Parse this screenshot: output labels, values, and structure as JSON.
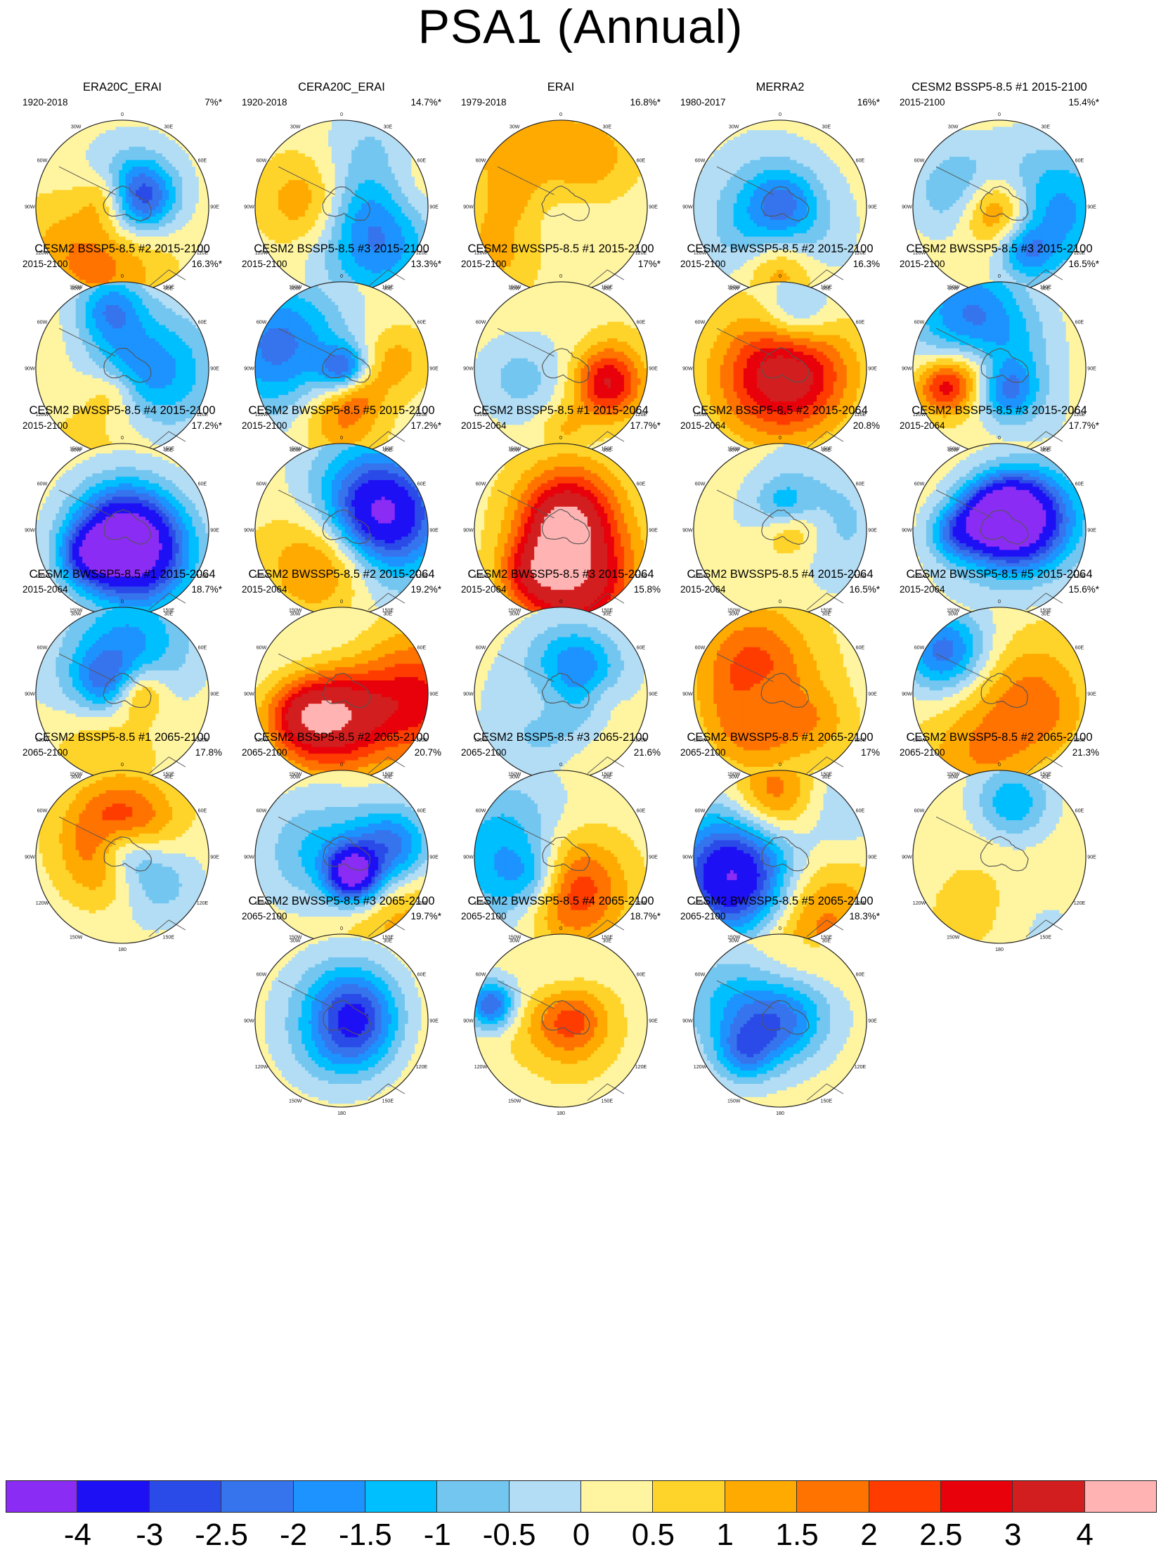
{
  "title": "PSA1 (Annual)",
  "lon_labels": [
    "0",
    "30E",
    "60E",
    "90E",
    "120E",
    "150E",
    "180",
    "150W",
    "120W",
    "90W",
    "60W",
    "30W"
  ],
  "panels": [
    {
      "title": "ERA20C_ERAI",
      "period": "1920-2018",
      "pct": "7%*",
      "seed": 11
    },
    {
      "title": "CERA20C_ERAI",
      "period": "1920-2018",
      "pct": "14.7%*",
      "seed": 23
    },
    {
      "title": "ERAI",
      "period": "1979-2018",
      "pct": "16.8%*",
      "seed": 37
    },
    {
      "title": "MERRA2",
      "period": "1980-2017",
      "pct": "16%*",
      "seed": 41
    },
    {
      "title": "CESM2 BSSP5-8.5 #1 2015-2100",
      "period": "2015-2100",
      "pct": "15.4%*",
      "seed": 53
    },
    {
      "title": "CESM2 BSSP5-8.5 #2 2015-2100",
      "period": "2015-2100",
      "pct": "16.3%*",
      "seed": 67
    },
    {
      "title": "CESM2 BSSP5-8.5 #3 2015-2100",
      "period": "2015-2100",
      "pct": "13.3%*",
      "seed": 71
    },
    {
      "title": "CESM2 BWSSP5-8.5 #1 2015-2100",
      "period": "2015-2100",
      "pct": "17%*",
      "seed": 83
    },
    {
      "title": "CESM2 BWSSP5-8.5 #2 2015-2100",
      "period": "2015-2100",
      "pct": "16.3%",
      "seed": 97
    },
    {
      "title": "CESM2 BWSSP5-8.5 #3 2015-2100",
      "period": "2015-2100",
      "pct": "16.5%*",
      "seed": 101
    },
    {
      "title": "CESM2 BWSSP5-8.5 #4 2015-2100",
      "period": "2015-2100",
      "pct": "17.2%*",
      "seed": 113
    },
    {
      "title": "CESM2 BWSSP5-8.5 #5 2015-2100",
      "period": "2015-2100",
      "pct": "17.2%*",
      "seed": 127
    },
    {
      "title": "CESM2 BSSP5-8.5 #1 2015-2064",
      "period": "2015-2064",
      "pct": "17.7%*",
      "seed": 131
    },
    {
      "title": "CESM2 BSSP5-8.5 #2 2015-2064",
      "period": "2015-2064",
      "pct": "20.8%",
      "seed": 149
    },
    {
      "title": "CESM2 BSSP5-8.5 #3 2015-2064",
      "period": "2015-2064",
      "pct": "17.7%*",
      "seed": 151
    },
    {
      "title": "CESM2 BWSSP5-8.5 #1 2015-2064",
      "period": "2015-2064",
      "pct": "18.7%*",
      "seed": 163
    },
    {
      "title": "CESM2 BWSSP5-8.5 #2 2015-2064",
      "period": "2015-2064",
      "pct": "19.2%*",
      "seed": 173
    },
    {
      "title": "CESM2 BWSSP5-8.5 #3 2015-2064",
      "period": "2015-2064",
      "pct": "15.8%",
      "seed": 181
    },
    {
      "title": "CESM2 BWSSP5-8.5 #4 2015-2064",
      "period": "2015-2064",
      "pct": "16.5%*",
      "seed": 191
    },
    {
      "title": "CESM2 BWSSP5-8.5 #5 2015-2064",
      "period": "2015-2064",
      "pct": "15.6%*",
      "seed": 199
    },
    {
      "title": "CESM2 BSSP5-8.5 #1 2065-2100",
      "period": "2065-2100",
      "pct": "17.8%",
      "seed": 211
    },
    {
      "title": "CESM2 BSSP5-8.5 #2 2065-2100",
      "period": "2065-2100",
      "pct": "20.7%",
      "seed": 223
    },
    {
      "title": "CESM2 BSSP5-8.5 #3 2065-2100",
      "period": "2065-2100",
      "pct": "21.6%",
      "seed": 227
    },
    {
      "title": "CESM2 BWSSP5-8.5 #1 2065-2100",
      "period": "2065-2100",
      "pct": "17%",
      "seed": 239
    },
    {
      "title": "CESM2 BWSSP5-8.5 #2 2065-2100",
      "period": "2065-2100",
      "pct": "21.3%",
      "seed": 241
    },
    {
      "title": "CESM2 BWSSP5-8.5 #3 2065-2100",
      "period": "2065-2100",
      "pct": "19.7%*",
      "seed": 251
    },
    {
      "title": "CESM2 BWSSP5-8.5 #4 2065-2100",
      "period": "2065-2100",
      "pct": "18.7%*",
      "seed": 257
    },
    {
      "title": "CESM2 BWSSP5-8.5 #5 2065-2100",
      "period": "2065-2100",
      "pct": "18.3%*",
      "seed": 263
    }
  ],
  "colorbar": {
    "colors": [
      "#8b2cf5",
      "#1e10f5",
      "#2b4be8",
      "#3674ee",
      "#1c93ff",
      "#00bfff",
      "#72c6f0",
      "#b3ddf5",
      "#fff5a0",
      "#ffd42a",
      "#ffaa00",
      "#ff7300",
      "#ff3c00",
      "#e8000a",
      "#d21e1e",
      "#ffb3b3"
    ],
    "labels": [
      "-4",
      "-3",
      "-2.5",
      "-2",
      "-1.5",
      "-1",
      "-0.5",
      "0",
      "0.5",
      "1",
      "1.5",
      "2",
      "2.5",
      "3",
      "4"
    ]
  }
}
